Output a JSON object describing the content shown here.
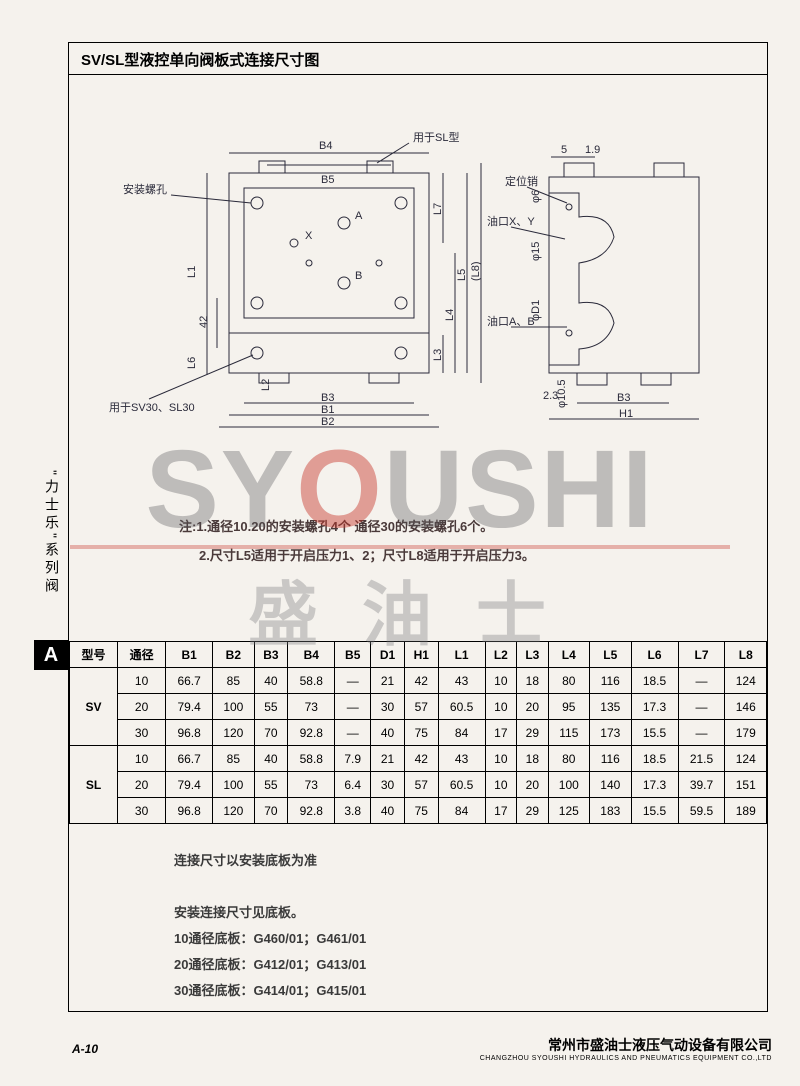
{
  "header": {
    "title": "SV/SL型液控单向阀板式连接尺寸图"
  },
  "side": {
    "vertical_label": "\"力士乐\"系列阀",
    "tab_letter": "A"
  },
  "watermark": {
    "main_pre": "SY",
    "main_red": "O",
    "main_post": "USHI",
    "sub": "盛油士"
  },
  "diagram": {
    "labels": {
      "mount_hole": "安装螺孔",
      "for_sl": "用于SL型",
      "locating_pin": "定位销",
      "port_xy": "油口X、Y",
      "port_ab": "油口A、B",
      "for_sv30": "用于SV30、SL30"
    },
    "dims_left": [
      "B4",
      "B5",
      "X",
      "A",
      "B",
      "L1",
      "42",
      "L6",
      "L2",
      "B3",
      "B1",
      "B2",
      "L3",
      "L4",
      "L5",
      "L7",
      "(L8)"
    ],
    "dims_right": [
      "5",
      "1.9",
      "φ6",
      "φ15",
      "φD1",
      "φ10.5",
      "2.3",
      "B3",
      "H1"
    ]
  },
  "notes": {
    "l1": "注:1.通径10.20的安装螺孔4个  通径30的安装螺孔6个。",
    "l2": "2.尺寸L5适用于开启压力1、2；尺寸L8适用于开启压力3。"
  },
  "table": {
    "columns": [
      "型号",
      "通径",
      "B1",
      "B2",
      "B3",
      "B4",
      "B5",
      "D1",
      "H1",
      "L1",
      "L2",
      "L3",
      "L4",
      "L5",
      "L6",
      "L7",
      "L8"
    ],
    "groups": [
      {
        "model": "SV",
        "rows": [
          [
            "10",
            "66.7",
            "85",
            "40",
            "58.8",
            "—",
            "21",
            "42",
            "43",
            "10",
            "18",
            "80",
            "116",
            "18.5",
            "—",
            "124"
          ],
          [
            "20",
            "79.4",
            "100",
            "55",
            "73",
            "—",
            "30",
            "57",
            "60.5",
            "10",
            "20",
            "95",
            "135",
            "17.3",
            "—",
            "146"
          ],
          [
            "30",
            "96.8",
            "120",
            "70",
            "92.8",
            "—",
            "40",
            "75",
            "84",
            "17",
            "29",
            "115",
            "173",
            "15.5",
            "—",
            "179"
          ]
        ]
      },
      {
        "model": "SL",
        "rows": [
          [
            "10",
            "66.7",
            "85",
            "40",
            "58.8",
            "7.9",
            "21",
            "42",
            "43",
            "10",
            "18",
            "80",
            "116",
            "18.5",
            "21.5",
            "124"
          ],
          [
            "20",
            "79.4",
            "100",
            "55",
            "73",
            "6.4",
            "30",
            "57",
            "60.5",
            "10",
            "20",
            "100",
            "140",
            "17.3",
            "39.7",
            "151"
          ],
          [
            "30",
            "96.8",
            "120",
            "70",
            "92.8",
            "3.8",
            "40",
            "75",
            "84",
            "17",
            "29",
            "125",
            "183",
            "15.5",
            "59.5",
            "189"
          ]
        ]
      }
    ]
  },
  "footnotes": {
    "lead": "连接尺寸以安装底板为准",
    "t1": "安装连接尺寸见底板。",
    "t2": "10通径底板：G460/01；G461/01",
    "t3": "20通径底板：G412/01；G413/01",
    "t4": "30通径底板：G414/01；G415/01"
  },
  "footer": {
    "page": "A-10",
    "company_cn": "常州市盛油士液压气动设备有限公司",
    "company_en": "CHANGZHOU SYOUSHI HYDRAULICS AND PNEUMATICS EQUIPMENT CO.,LTD"
  },
  "style": {
    "bg": "#f5f2ed",
    "border": "#000000",
    "text": "#2a2a3a",
    "wm_gray": "rgba(90,90,92,0.35)",
    "wm_red": "rgba(200,54,42,0.45)"
  }
}
